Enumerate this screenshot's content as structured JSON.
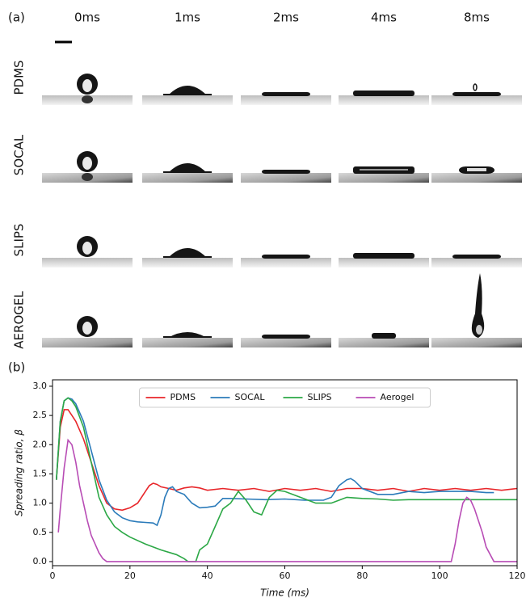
{
  "panel_a": {
    "label": "(a)",
    "times": [
      "0ms",
      "1ms",
      "2ms",
      "4ms",
      "8ms"
    ],
    "rows": [
      "PDMS",
      "SOCAL",
      "SLIPS",
      "AEROGEL"
    ]
  },
  "chart_data": {
    "type": "line",
    "panel_label": "(b)",
    "x_label": "Time (ms)",
    "y_label": "Spreading ratio, β",
    "xlim": [
      0,
      120
    ],
    "xticks": [
      0,
      20,
      40,
      60,
      80,
      100,
      120
    ],
    "ylim": [
      -0.07,
      3.11
    ],
    "yticks": [
      {
        "value": 0,
        "label": "0.0"
      },
      0.5,
      {
        "value": 1,
        "label": "1.0"
      },
      1.5,
      {
        "value": 2,
        "label": "2.0"
      },
      2.5,
      {
        "value": 3,
        "label": "3.0"
      }
    ],
    "legend": "upper center",
    "series": [
      {
        "name": "PDMS",
        "color": "#e8262a",
        "x": [
          1,
          2,
          3,
          4,
          5,
          6,
          8,
          10,
          12,
          14,
          16,
          18,
          20,
          22,
          24,
          25,
          26,
          27,
          28,
          30,
          32,
          34,
          36,
          38,
          40,
          44,
          48,
          52,
          56,
          60,
          64,
          68,
          72,
          76,
          80,
          84,
          88,
          92,
          96,
          100,
          104,
          108,
          112,
          116,
          120
        ],
        "values": [
          1.4,
          2.3,
          2.6,
          2.6,
          2.5,
          2.4,
          2.1,
          1.7,
          1.3,
          1.0,
          0.9,
          0.88,
          0.92,
          1.0,
          1.2,
          1.3,
          1.34,
          1.32,
          1.28,
          1.25,
          1.22,
          1.26,
          1.28,
          1.26,
          1.22,
          1.25,
          1.22,
          1.25,
          1.2,
          1.25,
          1.22,
          1.25,
          1.2,
          1.25,
          1.25,
          1.22,
          1.25,
          1.2,
          1.25,
          1.22,
          1.25,
          1.22,
          1.25,
          1.22,
          1.25
        ]
      },
      {
        "name": "SOCAL",
        "color": "#2b7bba",
        "x": [
          1,
          2,
          3,
          4,
          5,
          6,
          8,
          10,
          12,
          14,
          16,
          18,
          20,
          22,
          24,
          26,
          27,
          28,
          29,
          30,
          31,
          32,
          34,
          36,
          38,
          40,
          42,
          44,
          46,
          50,
          55,
          60,
          65,
          70,
          72,
          74,
          76,
          77,
          78,
          80,
          84,
          88,
          92,
          96,
          100,
          104,
          108,
          112,
          114
        ],
        "values": [
          1.4,
          2.4,
          2.75,
          2.8,
          2.78,
          2.7,
          2.4,
          1.9,
          1.4,
          1.05,
          0.85,
          0.75,
          0.7,
          0.68,
          0.67,
          0.66,
          0.62,
          0.8,
          1.1,
          1.25,
          1.28,
          1.2,
          1.15,
          1.0,
          0.92,
          0.93,
          0.95,
          1.08,
          1.08,
          1.07,
          1.06,
          1.07,
          1.05,
          1.05,
          1.1,
          1.3,
          1.4,
          1.42,
          1.38,
          1.25,
          1.15,
          1.15,
          1.2,
          1.18,
          1.2,
          1.2,
          1.2,
          1.18,
          1.18
        ]
      },
      {
        "name": "SLIPS",
        "color": "#2ca846",
        "x": [
          1,
          2,
          3,
          4,
          5,
          6,
          8,
          10,
          12,
          14,
          16,
          18,
          20,
          24,
          28,
          32,
          34,
          35,
          36,
          37,
          38,
          40,
          42,
          44,
          46,
          48,
          50,
          52,
          54,
          56,
          58,
          60,
          62,
          64,
          66,
          68,
          70,
          72,
          74,
          76,
          80,
          84,
          88,
          92,
          96,
          100,
          110,
          120
        ],
        "values": [
          1.4,
          2.4,
          2.75,
          2.8,
          2.75,
          2.65,
          2.3,
          1.7,
          1.1,
          0.8,
          0.6,
          0.5,
          0.42,
          0.3,
          0.2,
          0.12,
          0.05,
          0.0,
          0.0,
          0.0,
          0.2,
          0.3,
          0.6,
          0.9,
          1.0,
          1.2,
          1.05,
          0.85,
          0.8,
          1.1,
          1.22,
          1.2,
          1.15,
          1.1,
          1.05,
          1.0,
          1.0,
          1.0,
          1.05,
          1.1,
          1.08,
          1.07,
          1.05,
          1.06,
          1.06,
          1.06,
          1.06,
          1.06
        ]
      },
      {
        "name": "Aerogel",
        "color": "#b84cb5",
        "x": [
          1.5,
          2,
          3,
          4,
          5,
          6,
          7,
          8,
          9,
          10,
          11,
          12,
          13,
          14,
          20,
          40,
          60,
          80,
          100,
          103,
          104,
          105,
          106,
          107,
          108,
          109,
          110,
          111,
          112,
          114,
          120
        ],
        "values": [
          0.5,
          0.9,
          1.6,
          2.08,
          2.0,
          1.7,
          1.3,
          1.0,
          0.7,
          0.45,
          0.3,
          0.15,
          0.05,
          0.0,
          0,
          0,
          0,
          0,
          0,
          0,
          0.3,
          0.7,
          1.0,
          1.1,
          1.05,
          0.9,
          0.7,
          0.5,
          0.25,
          0.0,
          0.0
        ]
      }
    ]
  }
}
